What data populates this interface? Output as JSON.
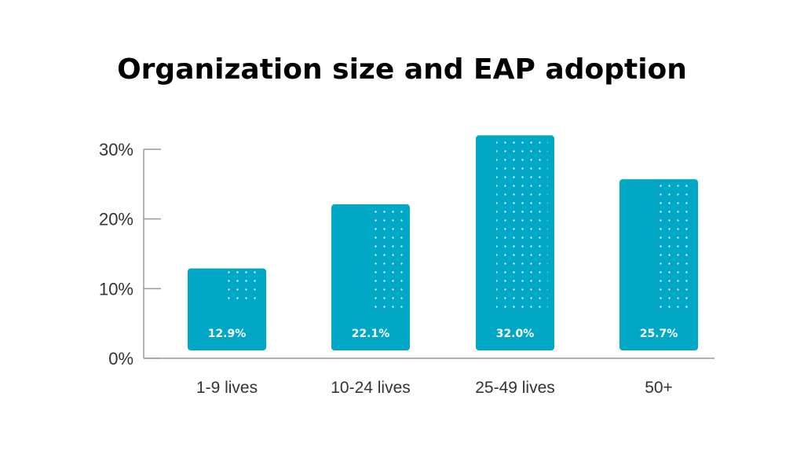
{
  "chart_data": {
    "type": "bar",
    "title": "Organization size and EAP adoption",
    "categories": [
      "1-9 lives",
      "10-24 lives",
      "25-49 lives",
      "50+"
    ],
    "values": [
      12.9,
      22.1,
      32.0,
      25.7
    ],
    "data_labels": [
      "12.9%",
      "22.1%",
      "32.0%",
      "25.7%"
    ],
    "ylim": [
      0,
      30
    ],
    "yticks": [
      0,
      10,
      20,
      30
    ],
    "ytick_labels": [
      "0%",
      "10%",
      "20%",
      "30%"
    ],
    "xlabel": "",
    "ylabel": "",
    "grid": false,
    "legend": "none",
    "bar_color": "#00a8c6",
    "dot_color": "#ffffff",
    "axis_color": "#9a9a9a"
  }
}
